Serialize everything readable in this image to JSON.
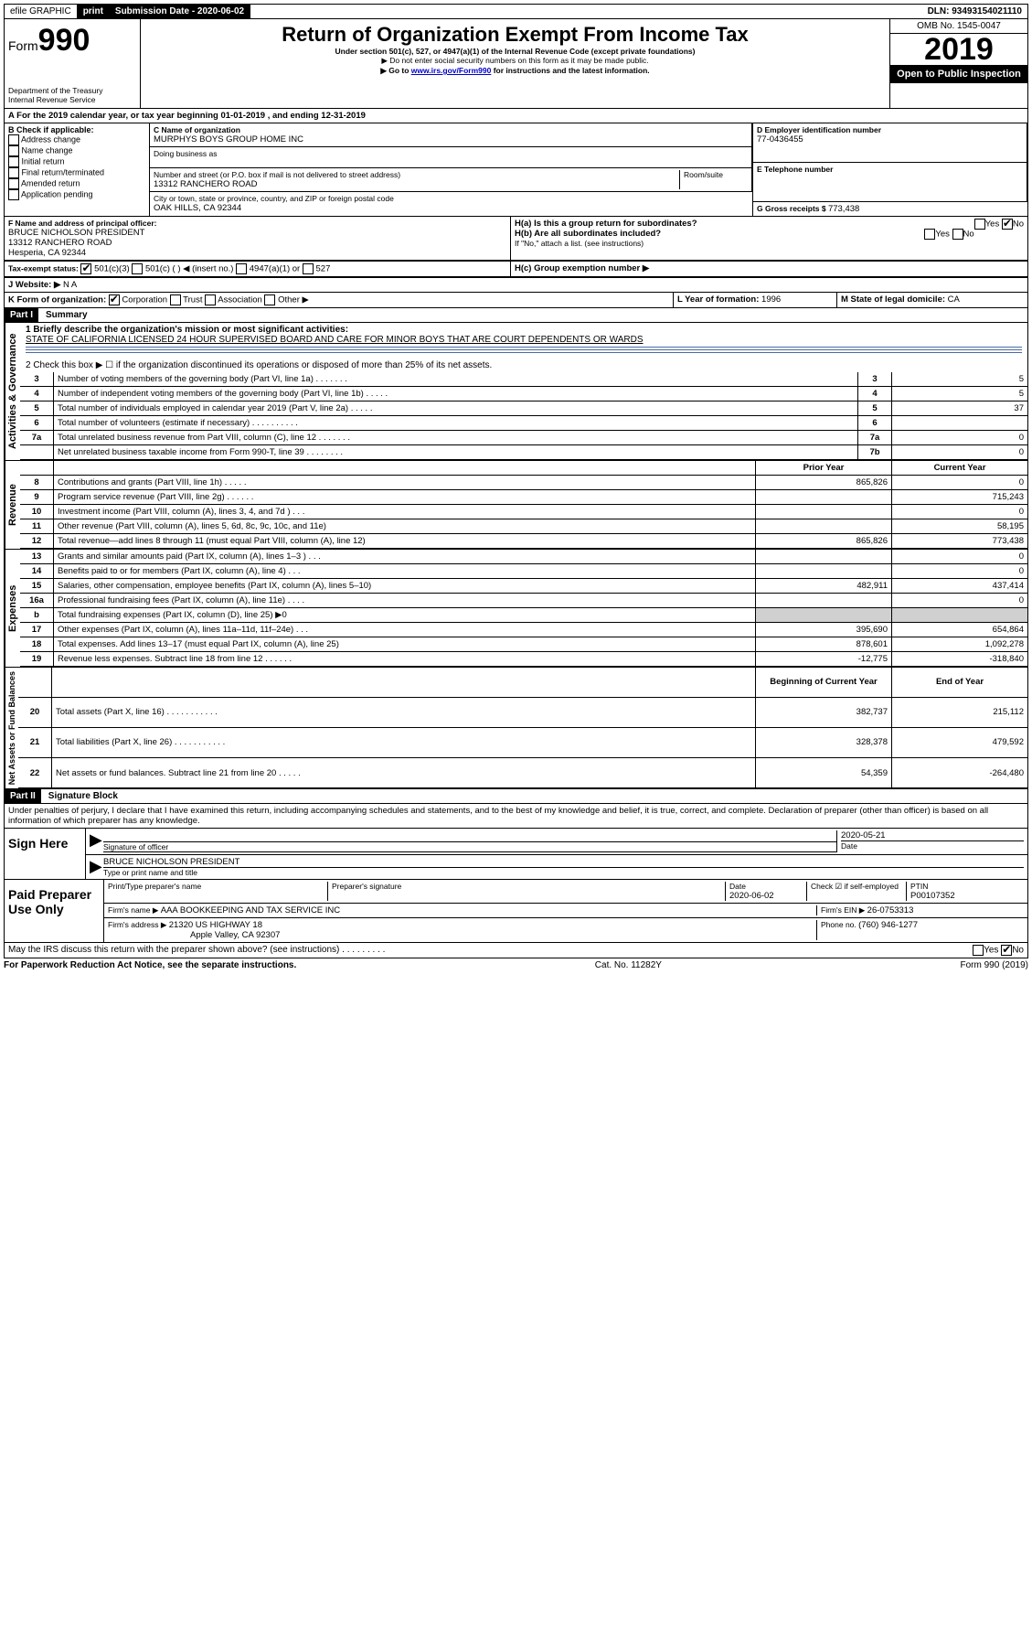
{
  "top": {
    "efile": "efile GRAPHIC",
    "print": "print",
    "sub_label": "Submission Date - ",
    "sub_date": "2020-06-02",
    "dln": "DLN: 93493154021110"
  },
  "header": {
    "form": "Form",
    "form_num": "990",
    "dept1": "Department of the Treasury",
    "dept2": "Internal Revenue Service",
    "title": "Return of Organization Exempt From Income Tax",
    "subtitle": "Under section 501(c), 527, or 4947(a)(1) of the Internal Revenue Code (except private foundations)",
    "note1": "▶ Do not enter social security numbers on this form as it may be made public.",
    "note2_pre": "▶ Go to ",
    "note2_link": "www.irs.gov/Form990",
    "note2_post": " for instructions and the latest information.",
    "omb": "OMB No. 1545-0047",
    "year": "2019",
    "open": "Open to Public Inspection"
  },
  "period": {
    "line": "A For the 2019 calendar year, or tax year beginning 01-01-2019    , and ending 12-31-2019"
  },
  "boxB": {
    "title": "B Check if applicable:",
    "opts": [
      "Address change",
      "Name change",
      "Initial return",
      "Final return/terminated",
      "Amended return",
      "Application pending"
    ]
  },
  "boxC": {
    "label": "C Name of organization",
    "name": "MURPHYS BOYS GROUP HOME INC",
    "dba": "Doing business as",
    "addr_label": "Number and street (or P.O. box if mail is not delivered to street address)",
    "room": "Room/suite",
    "addr": "13312 RANCHERO ROAD",
    "city_label": "City or town, state or province, country, and ZIP or foreign postal code",
    "city": "OAK HILLS, CA  92344"
  },
  "boxD": {
    "label": "D Employer identification number",
    "val": "77-0436455"
  },
  "boxE": {
    "label": "E Telephone number"
  },
  "boxG": {
    "label": "G Gross receipts $ ",
    "val": "773,438"
  },
  "boxF": {
    "label": "F Name and address of principal officer:",
    "name": "BRUCE NICHOLSON PRESIDENT",
    "addr1": "13312 RANCHERO ROAD",
    "addr2": "Hesperia, CA  92344"
  },
  "boxH": {
    "a": "H(a)  Is this a group return for subordinates?",
    "b": "H(b)  Are all subordinates included?",
    "b_note": "If \"No,\" attach a list. (see instructions)",
    "c": "H(c)  Group exemption number ▶",
    "yes": "Yes",
    "no": "No"
  },
  "taxExempt": {
    "label": "Tax-exempt status:",
    "opt1": "501(c)(3)",
    "opt2": "501(c) (   ) ◀ (insert no.)",
    "opt3": "4947(a)(1) or",
    "opt4": "527"
  },
  "boxJ": {
    "label": "J  Website: ▶",
    "val": " N A"
  },
  "boxK": {
    "label": "K Form of organization:",
    "opts": [
      "Corporation",
      "Trust",
      "Association",
      "Other ▶"
    ]
  },
  "boxL": {
    "label": "L Year of formation: ",
    "val": "1996"
  },
  "boxM": {
    "label": "M State of legal domicile: ",
    "val": "CA"
  },
  "part1": {
    "title": "Part I",
    "subtitle": "Summary",
    "q1": "1  Briefly describe the organization's mission or most significant activities:",
    "mission": "STATE OF CALIFORNIA LICENSED 24 HOUR SUPERVISED BOARD AND CARE FOR MINOR BOYS THAT ARE COURT DEPENDENTS OR WARDS",
    "q2": "2   Check this box ▶ ☐  if the organization discontinued its operations or disposed of more than 25% of its net assets."
  },
  "sections": {
    "gov": "Activities & Governance",
    "rev": "Revenue",
    "exp": "Expenses",
    "net": "Net Assets or Fund Balances"
  },
  "govRows": [
    {
      "n": "3",
      "t": "Number of voting members of the governing body (Part VI, line 1a)   .    .    .    .    .    .    .",
      "i": "3",
      "v": "5"
    },
    {
      "n": "4",
      "t": "Number of independent voting members of the governing body (Part VI, line 1b)  .    .    .    .    .",
      "i": "4",
      "v": "5"
    },
    {
      "n": "5",
      "t": "Total number of individuals employed in calendar year 2019 (Part V, line 2a)   .    .    .    .    .",
      "i": "5",
      "v": "37"
    },
    {
      "n": "6",
      "t": "Total number of volunteers (estimate if necessary)   .    .    .    .    .    .    .    .    .    .",
      "i": "6",
      "v": ""
    },
    {
      "n": "7a",
      "t": "Total unrelated business revenue from Part VIII, column (C), line 12  .    .    .    .    .    .    .",
      "i": "7a",
      "v": "0"
    },
    {
      "n": "",
      "t": "Net unrelated business taxable income from Form 990-T, line 39  .    .    .    .    .    .    .    .",
      "i": "7b",
      "v": "0"
    }
  ],
  "cols": {
    "prior": "Prior Year",
    "current": "Current Year",
    "beg": "Beginning of Current Year",
    "end": "End of Year"
  },
  "revRows": [
    {
      "n": "8",
      "t": "Contributions and grants (Part VIII, line 1h)   .    .    .    .    .",
      "p": "865,826",
      "c": "0"
    },
    {
      "n": "9",
      "t": "Program service revenue (Part VIII, line 2g)    .    .    .    .    .    .",
      "p": "",
      "c": "715,243"
    },
    {
      "n": "10",
      "t": "Investment income (Part VIII, column (A), lines 3, 4, and 7d )   .    .    .",
      "p": "",
      "c": "0"
    },
    {
      "n": "11",
      "t": "Other revenue (Part VIII, column (A), lines 5, 6d, 8c, 9c, 10c, and 11e)",
      "p": "",
      "c": "58,195"
    },
    {
      "n": "12",
      "t": "Total revenue—add lines 8 through 11 (must equal Part VIII, column (A), line 12)",
      "p": "865,826",
      "c": "773,438"
    }
  ],
  "expRows": [
    {
      "n": "13",
      "t": "Grants and similar amounts paid (Part IX, column (A), lines 1–3 )   .    .    .",
      "p": "",
      "c": "0"
    },
    {
      "n": "14",
      "t": "Benefits paid to or for members (Part IX, column (A), line 4)   .    .    .",
      "p": "",
      "c": "0"
    },
    {
      "n": "15",
      "t": "Salaries, other compensation, employee benefits (Part IX, column (A), lines 5–10)",
      "p": "482,911",
      "c": "437,414"
    },
    {
      "n": "16a",
      "t": "Professional fundraising fees (Part IX, column (A), line 11e)   .    .    .    .",
      "p": "",
      "c": "0"
    },
    {
      "n": "b",
      "t": "Total fundraising expenses (Part IX, column (D), line 25) ▶0",
      "p": "GRAY",
      "c": "GRAY"
    },
    {
      "n": "17",
      "t": "Other expenses (Part IX, column (A), lines 11a–11d, 11f–24e)   .    .    .",
      "p": "395,690",
      "c": "654,864"
    },
    {
      "n": "18",
      "t": "Total expenses. Add lines 13–17 (must equal Part IX, column (A), line 25)",
      "p": "878,601",
      "c": "1,092,278"
    },
    {
      "n": "19",
      "t": "Revenue less expenses. Subtract line 18 from line 12  .    .    .    .    .    .",
      "p": "-12,775",
      "c": "-318,840"
    }
  ],
  "netRows": [
    {
      "n": "20",
      "t": "Total assets (Part X, line 16)   .    .    .    .    .    .    .    .    .    .    .",
      "p": "382,737",
      "c": "215,112"
    },
    {
      "n": "21",
      "t": "Total liabilities (Part X, line 26)   .    .    .    .    .    .    .    .    .    .    .",
      "p": "328,378",
      "c": "479,592"
    },
    {
      "n": "22",
      "t": "Net assets or fund balances. Subtract line 21 from line 20  .    .    .    .    .",
      "p": "54,359",
      "c": "-264,480"
    }
  ],
  "part2": {
    "title": "Part II",
    "subtitle": "Signature Block",
    "decl": "Under penalties of perjury, I declare that I have examined this return, including accompanying schedules and statements, and to the best of my knowledge and belief, it is true, correct, and complete. Declaration of preparer (other than officer) is based on all information of which preparer has any knowledge."
  },
  "sign": {
    "here": "Sign Here",
    "sig": "Signature of officer",
    "date_label": "Date",
    "date": "2020-05-21",
    "name": "BRUCE NICHOLSON  PRESIDENT",
    "name_label": "Type or print name and title"
  },
  "paid": {
    "title": "Paid Preparer Use Only",
    "prep_label": "Print/Type preparer's name",
    "sig_label": "Preparer's signature",
    "date_label": "Date",
    "date": "2020-06-02",
    "check": "Check ☑ if self-employed",
    "ptin_label": "PTIN",
    "ptin": "P00107352",
    "firm_label": "Firm's name    ▶ ",
    "firm": "AAA BOOKKEEPING AND TAX SERVICE INC",
    "ein_label": "Firm's EIN ▶ ",
    "ein": "26-0753313",
    "addr_label": "Firm's address ▶ ",
    "addr1": "21320 US HIGHWAY 18",
    "addr2": "Apple Valley, CA  92307",
    "phone_label": "Phone no. ",
    "phone": "(760) 946-1277"
  },
  "discuss": {
    "q": "May the IRS discuss this return with the preparer shown above? (see instructions)    .    .    .    .    .    .    .    .    .",
    "yes": "Yes",
    "no": "No"
  },
  "footer": {
    "left": "For Paperwork Reduction Act Notice, see the separate instructions.",
    "mid": "Cat. No. 11282Y",
    "right": "Form 990 (2019)"
  }
}
